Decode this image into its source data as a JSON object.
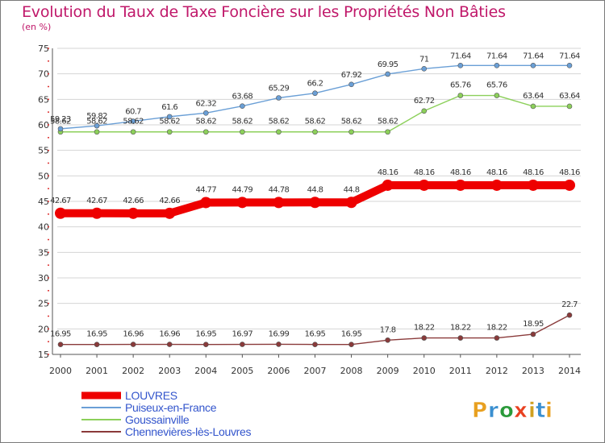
{
  "chart_data": {
    "type": "line",
    "title": "Evolution du Taux de Taxe Foncière sur les Propriétés Non Bâties",
    "unit_label": "(en %)",
    "xlabel": "",
    "ylabel": "",
    "x": [
      "2000",
      "2001",
      "2002",
      "2003",
      "2004",
      "2005",
      "2006",
      "2007",
      "2008",
      "2009",
      "2010",
      "2011",
      "2012",
      "2013",
      "2014"
    ],
    "ylim": [
      15,
      75
    ],
    "yticks": [
      "15",
      "20",
      "25",
      "30",
      "35",
      "40",
      "45",
      "50",
      "55",
      "60",
      "65",
      "70",
      "75"
    ],
    "grid": true,
    "legend_position": "bottom-left",
    "series": [
      {
        "name": "LOUVRES",
        "color": "#ee0000",
        "values": [
          42.67,
          42.67,
          42.66,
          42.66,
          44.77,
          44.79,
          44.78,
          44.8,
          44.8,
          48.16,
          48.16,
          48.16,
          48.16,
          48.16,
          48.16
        ],
        "labels": [
          "42.67",
          "42.67",
          "42.66",
          "42.66",
          "44.77",
          "44.79",
          "44.78",
          "44.8",
          "44.8",
          "48.16",
          "48.16",
          "48.16",
          "48.16",
          "48.16",
          "48.16"
        ]
      },
      {
        "name": "Puiseux-en-France",
        "color": "#6a9fd6",
        "values": [
          59.23,
          59.82,
          60.7,
          61.6,
          62.32,
          63.68,
          65.29,
          66.2,
          67.92,
          69.95,
          71,
          71.64,
          71.64,
          71.64,
          71.64
        ],
        "labels": [
          "59.23",
          "59.82",
          "60.7",
          "61.6",
          "62.32",
          "63.68",
          "65.29",
          "66.2",
          "67.92",
          "69.95",
          "71",
          "71.64",
          "71.64",
          "71.64",
          "71.64"
        ]
      },
      {
        "name": "Goussainville",
        "color": "#8cd05a",
        "values": [
          58.62,
          58.62,
          58.62,
          58.62,
          58.62,
          58.62,
          58.62,
          58.62,
          58.62,
          58.62,
          62.72,
          65.76,
          65.76,
          63.64,
          63.64
        ],
        "labels": [
          "58.62",
          "58.62",
          "58.62",
          "58.62",
          "58.62",
          "58.62",
          "58.62",
          "58.62",
          "58.62",
          "58.62",
          "62.72",
          "65.76",
          "65.76",
          "63.64",
          "63.64"
        ]
      },
      {
        "name": "Chennevières-lès-Louvres",
        "color": "#8a3a3a",
        "values": [
          16.95,
          16.95,
          16.96,
          16.96,
          16.95,
          16.97,
          16.99,
          16.95,
          16.95,
          17.8,
          18.22,
          18.22,
          18.22,
          18.95,
          22.7
        ],
        "labels": [
          "16.95",
          "16.95",
          "16.96",
          "16.96",
          "16.95",
          "16.97",
          "16.99",
          "16.95",
          "16.95",
          "17.8",
          "18.22",
          "18.22",
          "18.22",
          "18.95",
          "22.7"
        ]
      }
    ]
  },
  "logo": {
    "text": "Proxiti",
    "colors": [
      "#e8a020",
      "#3a8fd0",
      "#2a9a3a",
      "#e84020",
      "#d0a020",
      "#3a8fd0",
      "#e8a020"
    ]
  }
}
